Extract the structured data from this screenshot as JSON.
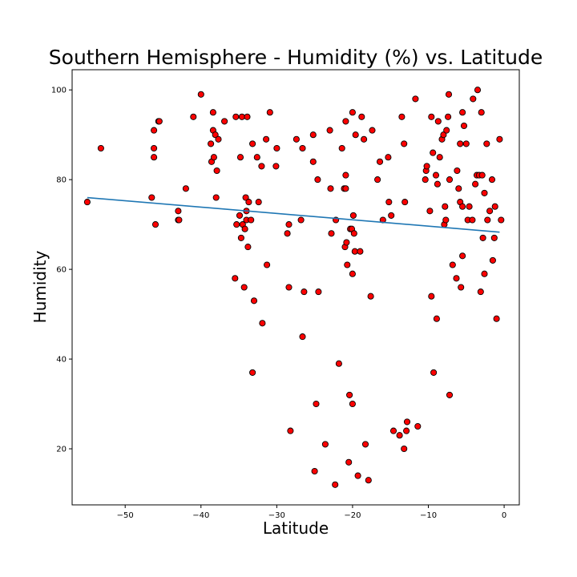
{
  "chart_data": {
    "type": "scatter",
    "title": "Southern Hemisphere - Humidity (%) vs. Latitude",
    "xlabel": "Latitude",
    "ylabel": "Humidity",
    "xlim": [
      -57,
      2
    ],
    "ylim": [
      7.5,
      104.5
    ],
    "xticks": [
      -50,
      -40,
      -30,
      -20,
      -10,
      0
    ],
    "xtick_labels": [
      "−50",
      "−40",
      "−30",
      "−20",
      "−10",
      "0"
    ],
    "yticks": [
      20,
      40,
      60,
      80,
      100
    ],
    "ytick_labels": [
      "20",
      "40",
      "60",
      "80",
      "100"
    ],
    "grid": false,
    "colors": {
      "marker_fill": "#ff0000",
      "marker_edge": "#000000",
      "regression_line": "#1f77b4"
    },
    "regression_line": {
      "x": [
        -55,
        -0.6
      ],
      "y": [
        76,
        68.3
      ]
    },
    "points": [
      [
        -55.0,
        75
      ],
      [
        -53.2,
        87
      ],
      [
        -46.5,
        76
      ],
      [
        -46.2,
        91
      ],
      [
        -46.2,
        87
      ],
      [
        -46.2,
        85
      ],
      [
        -46.0,
        70
      ],
      [
        -45.6,
        93
      ],
      [
        -45.5,
        93
      ],
      [
        -43.0,
        73
      ],
      [
        -43.0,
        71
      ],
      [
        -42.9,
        71
      ],
      [
        -42.0,
        78
      ],
      [
        -41.0,
        94
      ],
      [
        -40.0,
        99
      ],
      [
        -38.7,
        88
      ],
      [
        -38.6,
        84
      ],
      [
        -38.4,
        91
      ],
      [
        -38.4,
        95
      ],
      [
        -38.3,
        85
      ],
      [
        -38.1,
        90
      ],
      [
        -38.0,
        76
      ],
      [
        -37.9,
        82
      ],
      [
        -37.7,
        89
      ],
      [
        -36.9,
        93
      ],
      [
        -35.5,
        58
      ],
      [
        -35.4,
        94
      ],
      [
        -35.3,
        70
      ],
      [
        -34.9,
        72
      ],
      [
        -34.8,
        85
      ],
      [
        -34.7,
        67
      ],
      [
        -34.6,
        94
      ],
      [
        -34.5,
        70
      ],
      [
        -34.3,
        56
      ],
      [
        -34.2,
        69
      ],
      [
        -34.1,
        76
      ],
      [
        -34.0,
        73
      ],
      [
        -34.0,
        71
      ],
      [
        -33.9,
        94
      ],
      [
        -33.8,
        65
      ],
      [
        -33.7,
        75
      ],
      [
        -33.4,
        71
      ],
      [
        -33.2,
        88
      ],
      [
        -33.2,
        37
      ],
      [
        -33.0,
        53
      ],
      [
        -32.6,
        85
      ],
      [
        -32.4,
        75
      ],
      [
        -32.0,
        83
      ],
      [
        -31.9,
        48
      ],
      [
        -31.4,
        89
      ],
      [
        -31.3,
        61
      ],
      [
        -30.9,
        95
      ],
      [
        -30.1,
        83
      ],
      [
        -30.0,
        87
      ],
      [
        -28.6,
        68
      ],
      [
        -28.4,
        70
      ],
      [
        -28.4,
        56
      ],
      [
        -28.2,
        24
      ],
      [
        -27.4,
        89
      ],
      [
        -26.8,
        71
      ],
      [
        -26.6,
        45
      ],
      [
        -26.6,
        87
      ],
      [
        -26.4,
        55
      ],
      [
        -25.2,
        90
      ],
      [
        -25.2,
        84
      ],
      [
        -25.0,
        15
      ],
      [
        -24.8,
        30
      ],
      [
        -24.6,
        80
      ],
      [
        -24.5,
        55
      ],
      [
        -23.6,
        21
      ],
      [
        -23.0,
        91
      ],
      [
        -22.9,
        78
      ],
      [
        -22.8,
        68
      ],
      [
        -22.3,
        12
      ],
      [
        -22.2,
        71
      ],
      [
        -21.8,
        39
      ],
      [
        -21.4,
        87
      ],
      [
        -21.1,
        78
      ],
      [
        -21.0,
        65
      ],
      [
        -20.9,
        81
      ],
      [
        -20.9,
        78
      ],
      [
        -20.9,
        93
      ],
      [
        -20.8,
        66
      ],
      [
        -20.7,
        61
      ],
      [
        -20.5,
        17
      ],
      [
        -20.4,
        32
      ],
      [
        -20.3,
        69
      ],
      [
        -20.1,
        69
      ],
      [
        -20.0,
        95
      ],
      [
        -20.0,
        59
      ],
      [
        -20.0,
        30
      ],
      [
        -19.9,
        72
      ],
      [
        -19.8,
        68
      ],
      [
        -19.7,
        64
      ],
      [
        -19.6,
        90
      ],
      [
        -19.3,
        14
      ],
      [
        -19.0,
        64
      ],
      [
        -18.8,
        94
      ],
      [
        -18.5,
        89
      ],
      [
        -18.3,
        21
      ],
      [
        -17.9,
        13
      ],
      [
        -17.6,
        54
      ],
      [
        -17.4,
        91
      ],
      [
        -16.7,
        80
      ],
      [
        -16.4,
        84
      ],
      [
        -16.0,
        71
      ],
      [
        -15.3,
        85
      ],
      [
        -15.2,
        75
      ],
      [
        -14.9,
        72
      ],
      [
        -14.6,
        24
      ],
      [
        -13.8,
        23
      ],
      [
        -13.5,
        94
      ],
      [
        -13.2,
        88
      ],
      [
        -13.2,
        20
      ],
      [
        -13.1,
        75
      ],
      [
        -12.9,
        24
      ],
      [
        -12.8,
        26
      ],
      [
        -11.7,
        98
      ],
      [
        -11.4,
        25
      ],
      [
        -10.4,
        80
      ],
      [
        -10.3,
        82
      ],
      [
        -10.2,
        83
      ],
      [
        -9.8,
        73
      ],
      [
        -9.6,
        94
      ],
      [
        -9.6,
        54
      ],
      [
        -9.4,
        86
      ],
      [
        -9.3,
        37
      ],
      [
        -9.0,
        81
      ],
      [
        -8.9,
        49
      ],
      [
        -8.8,
        79
      ],
      [
        -8.7,
        93
      ],
      [
        -8.5,
        85
      ],
      [
        -8.2,
        89
      ],
      [
        -8.0,
        90
      ],
      [
        -7.9,
        70
      ],
      [
        -7.8,
        74
      ],
      [
        -7.7,
        71
      ],
      [
        -7.6,
        91
      ],
      [
        -7.4,
        94
      ],
      [
        -7.3,
        99
      ],
      [
        -7.2,
        80
      ],
      [
        -7.2,
        32
      ],
      [
        -6.8,
        61
      ],
      [
        -6.3,
        58
      ],
      [
        -6.2,
        82
      ],
      [
        -6.0,
        78
      ],
      [
        -5.8,
        88
      ],
      [
        -5.8,
        75
      ],
      [
        -5.7,
        56
      ],
      [
        -5.5,
        95
      ],
      [
        -5.5,
        74
      ],
      [
        -5.5,
        63
      ],
      [
        -5.3,
        92
      ],
      [
        -5.0,
        88
      ],
      [
        -4.8,
        71
      ],
      [
        -4.6,
        74
      ],
      [
        -4.2,
        71
      ],
      [
        -4.1,
        98
      ],
      [
        -3.8,
        79
      ],
      [
        -3.6,
        81
      ],
      [
        -3.5,
        100
      ],
      [
        -3.3,
        81
      ],
      [
        -3.1,
        55
      ],
      [
        -3.0,
        95
      ],
      [
        -2.9,
        81
      ],
      [
        -2.8,
        67
      ],
      [
        -2.6,
        59
      ],
      [
        -2.6,
        77
      ],
      [
        -2.3,
        88
      ],
      [
        -2.2,
        71
      ],
      [
        -1.9,
        73
      ],
      [
        -1.6,
        80
      ],
      [
        -1.5,
        62
      ],
      [
        -1.3,
        67
      ],
      [
        -1.2,
        74
      ],
      [
        -1.0,
        49
      ],
      [
        -0.6,
        89
      ],
      [
        -0.4,
        71
      ]
    ]
  }
}
